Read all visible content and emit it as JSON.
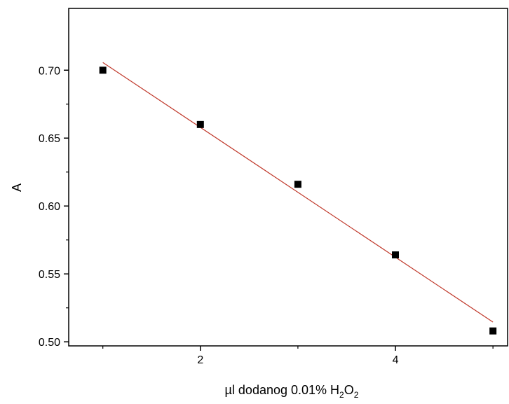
{
  "chart_data": {
    "type": "scatter",
    "title": "",
    "xlabel": {
      "prefix": "µl dodanog 0.01% H",
      "sub1": "2",
      "mid": "O",
      "sub2": "2"
    },
    "ylabel": "A",
    "xlim": [
      0.65,
      5.15
    ],
    "ylim": [
      0.497,
      0.7455
    ],
    "x_ticks": [
      2,
      4
    ],
    "x_minor_ticks": [
      1,
      3,
      5
    ],
    "y_ticks": [
      0.5,
      0.55,
      0.6,
      0.65,
      0.7
    ],
    "y_tick_labels": [
      "0.50",
      "0.55",
      "0.60",
      "0.65",
      "0.70"
    ],
    "series": [
      {
        "marker": "square",
        "color": "#000000",
        "x": [
          1,
          2,
          3,
          4,
          5
        ],
        "y": [
          0.7,
          0.66,
          0.616,
          0.564,
          0.508
        ]
      }
    ],
    "fit_line": {
      "color": "#c0392b",
      "x": [
        1,
        5
      ],
      "y": [
        0.7057,
        0.5145
      ]
    },
    "grid": false,
    "legend": "none"
  }
}
